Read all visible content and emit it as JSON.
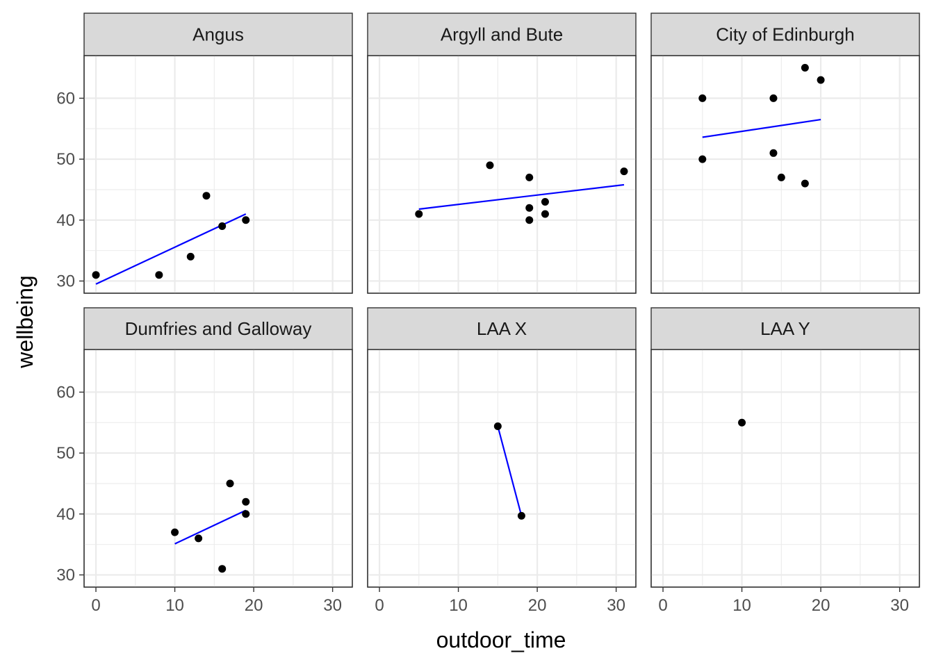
{
  "chart_data": {
    "type": "scatter",
    "xlabel": "outdoor_time",
    "ylabel": "wellbeing",
    "xlim": [
      -1.5,
      32.5
    ],
    "ylim": [
      28,
      67
    ],
    "x_ticks": [
      0,
      10,
      20,
      30
    ],
    "y_ticks": [
      30,
      40,
      50,
      60
    ],
    "grid": true,
    "layout": "facet_wrap 2 rows x 3 columns",
    "colors": {
      "points": "#000000",
      "fit_line": "#0000ff",
      "strip": "#d9d9d9",
      "grid": "#ebebeb"
    },
    "panels": [
      {
        "facet": "Angus",
        "points": [
          [
            0,
            31
          ],
          [
            8,
            31
          ],
          [
            12,
            34
          ],
          [
            14,
            44
          ],
          [
            16,
            39
          ],
          [
            19,
            40
          ]
        ],
        "fit": {
          "x": [
            0,
            19
          ],
          "y": [
            29.5,
            41
          ]
        }
      },
      {
        "facet": "Argyll and Bute",
        "points": [
          [
            5,
            41
          ],
          [
            14,
            49
          ],
          [
            19,
            47
          ],
          [
            19,
            42
          ],
          [
            19,
            40
          ],
          [
            21,
            43
          ],
          [
            21,
            41
          ],
          [
            31,
            48
          ]
        ],
        "fit": {
          "x": [
            5,
            31
          ],
          "y": [
            41.8,
            45.8
          ]
        }
      },
      {
        "facet": "City of Edinburgh",
        "points": [
          [
            5,
            60
          ],
          [
            5,
            50
          ],
          [
            14,
            60
          ],
          [
            14,
            51
          ],
          [
            15,
            47
          ],
          [
            18,
            65
          ],
          [
            18,
            46
          ],
          [
            20,
            63
          ]
        ],
        "fit": {
          "x": [
            5,
            20
          ],
          "y": [
            53.6,
            56.5
          ]
        }
      },
      {
        "facet": "Dumfries and Galloway",
        "points": [
          [
            10,
            37
          ],
          [
            13,
            36
          ],
          [
            16,
            31
          ],
          [
            17,
            45
          ],
          [
            19,
            42
          ],
          [
            19,
            40
          ]
        ],
        "fit": {
          "x": [
            10,
            19
          ],
          "y": [
            35.1,
            40.6
          ]
        }
      },
      {
        "facet": "LAA X",
        "points": [
          [
            15,
            54.4
          ],
          [
            18,
            39.7
          ]
        ],
        "fit": {
          "x": [
            15,
            18
          ],
          "y": [
            54.4,
            39.7
          ]
        }
      },
      {
        "facet": "LAA Y",
        "points": [
          [
            10,
            55
          ]
        ],
        "fit": null
      }
    ]
  }
}
